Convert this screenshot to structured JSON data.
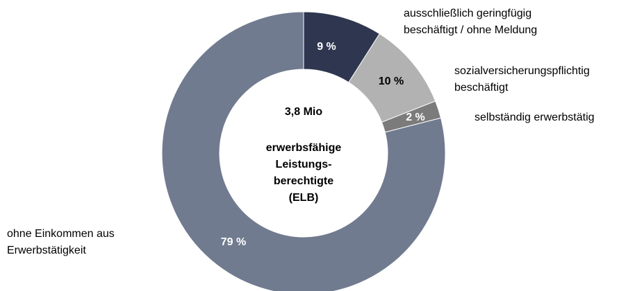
{
  "chart_data": {
    "type": "donut",
    "categories": [
      [
        "ausschließlich geringfügig",
        "beschäftigt / ohne Meldung"
      ],
      [
        "sozialversicherungspflichtig",
        "beschäftigt"
      ],
      [
        "selbständig erwerbstätig"
      ],
      [
        "ohne Einkommen aus",
        "Erwerbstätigkeit"
      ]
    ],
    "values": [
      9,
      10,
      2,
      79
    ],
    "value_labels": [
      "9 %",
      "10 %",
      "2 %",
      "79 %"
    ],
    "colors": [
      "#2e3650",
      "#b2b2b2",
      "#7b7b7b",
      "#717b8f"
    ],
    "center_label": [
      "3,8 Mio",
      "erwerbsfähige",
      "Leistungs-",
      "berechtigte",
      "(ELB)"
    ]
  }
}
